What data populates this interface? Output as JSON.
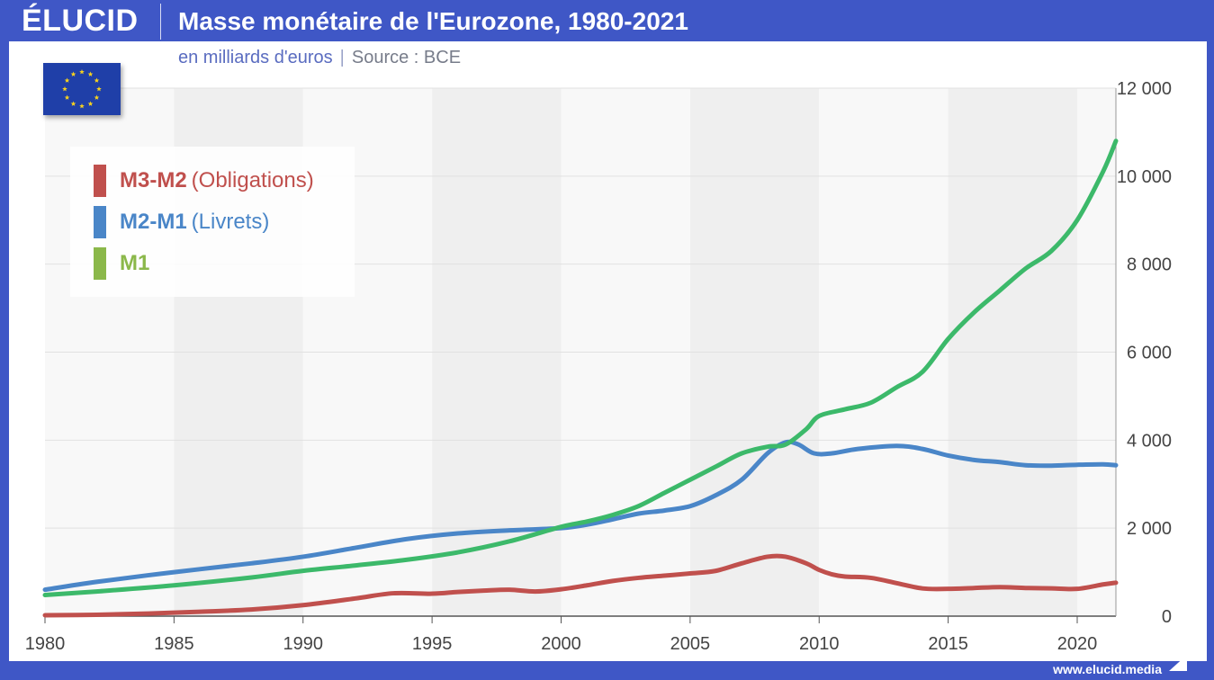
{
  "header": {
    "logo": "ÉLUCID",
    "title": "Masse monétaire de l'Eurozone, 1980-2021",
    "subtitle_unit": "en milliards d'euros",
    "subtitle_separator": "|",
    "subtitle_source": "Source : BCE"
  },
  "footer": {
    "url": "www.elucid.media"
  },
  "colors": {
    "frame": "#3f57c6",
    "m3m2": "#c0504d",
    "m2m1": "#4a86c8",
    "m1": "#3cb96a",
    "m1_legend": "#8bb84a",
    "band_dark": "#efefef",
    "band_light": "#f8f8f8"
  },
  "legend": [
    {
      "name": "M3-M2",
      "detail": "(Obligations)",
      "color": "#c0504d"
    },
    {
      "name": "M2-M1",
      "detail": "(Livrets)",
      "color": "#4a86c8"
    },
    {
      "name": "M1",
      "detail": "",
      "color": "#8bb84a"
    }
  ],
  "chart_data": {
    "type": "line",
    "title": "Masse monétaire de l'Eurozone, 1980-2021",
    "subtitle": "en milliards d'euros",
    "xlabel": "",
    "ylabel": "",
    "xlim": [
      1980,
      2021.5
    ],
    "ylim": [
      0,
      12000
    ],
    "x_ticks": [
      1980,
      1985,
      1990,
      1995,
      2000,
      2005,
      2010,
      2015,
      2020
    ],
    "y_ticks": [
      0,
      2000,
      4000,
      6000,
      8000,
      10000,
      12000
    ],
    "y_tick_labels": [
      "0",
      "2 000",
      "4 000",
      "6 000",
      "8 000",
      "10 000",
      "12 000"
    ],
    "y_axis_position": "right",
    "grid": true,
    "legend_position": "top-left",
    "series": [
      {
        "name": "M3-M2 (Obligations)",
        "x": [
          1980,
          1982,
          1984,
          1986,
          1988,
          1990,
          1992,
          1993.5,
          1995,
          1996,
          1997,
          1998,
          1999,
          2000,
          2001,
          2002,
          2003,
          2004,
          2005,
          2006,
          2007,
          2008,
          2008.7,
          2009.5,
          2010,
          2010.5,
          2011,
          2012,
          2013,
          2014,
          2015,
          2016,
          2017,
          2018,
          2019,
          2020,
          2021,
          2021.5
        ],
        "values": [
          20,
          30,
          60,
          100,
          150,
          250,
          400,
          520,
          510,
          550,
          580,
          600,
          560,
          610,
          700,
          800,
          870,
          920,
          970,
          1030,
          1200,
          1350,
          1350,
          1200,
          1050,
          950,
          900,
          870,
          750,
          630,
          620,
          640,
          660,
          640,
          630,
          620,
          720,
          760
        ]
      },
      {
        "name": "M2-M1 (Livrets)",
        "x": [
          1980,
          1982,
          1985,
          1988,
          1990,
          1992,
          1994,
          1996,
          1998,
          2000,
          2001,
          2002,
          2003,
          2004,
          2005,
          2006,
          2007,
          2008,
          2008.7,
          2009.2,
          2009.8,
          2010.5,
          2011.5,
          2013,
          2014,
          2015,
          2016,
          2017,
          2018,
          2019,
          2020,
          2021,
          2021.5
        ],
        "values": [
          600,
          780,
          1000,
          1200,
          1350,
          1550,
          1750,
          1880,
          1950,
          2000,
          2080,
          2200,
          2330,
          2400,
          2500,
          2750,
          3100,
          3700,
          3950,
          3900,
          3700,
          3700,
          3800,
          3870,
          3800,
          3650,
          3550,
          3500,
          3430,
          3420,
          3440,
          3450,
          3430
        ]
      },
      {
        "name": "M1",
        "x": [
          1980,
          1982,
          1985,
          1988,
          1990,
          1992,
          1994,
          1996,
          1998,
          2000,
          2001,
          2002,
          2003,
          2004,
          2005,
          2006,
          2007,
          2008,
          2008.7,
          2009.5,
          2010,
          2011,
          2012,
          2013,
          2014,
          2015,
          2016,
          2017,
          2018,
          2019,
          2020,
          2021,
          2021.5
        ],
        "values": [
          480,
          560,
          700,
          880,
          1030,
          1150,
          1280,
          1450,
          1700,
          2030,
          2150,
          2300,
          2500,
          2800,
          3100,
          3400,
          3700,
          3850,
          3900,
          4250,
          4550,
          4700,
          4850,
          5200,
          5550,
          6300,
          6900,
          7400,
          7900,
          8300,
          9000,
          10100,
          10800
        ]
      }
    ]
  }
}
